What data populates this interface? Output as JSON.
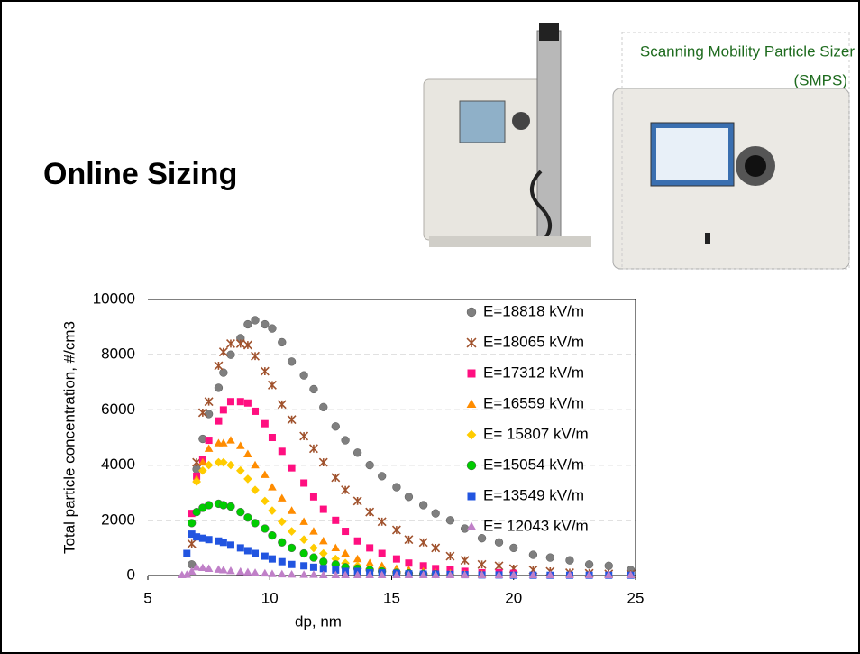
{
  "slide": {
    "title": "Online Sizing",
    "caption": [
      "Scanning Mobility Particle Sizer",
      "(SMPS)"
    ]
  },
  "chart_data": {
    "type": "scatter",
    "x_label": "dp, nm",
    "y_label": "Total particle concentration, #/cm3",
    "x": [
      6.4,
      6.6,
      6.8,
      7.0,
      7.25,
      7.5,
      7.9,
      8.1,
      8.4,
      8.8,
      9.1,
      9.4,
      9.8,
      10.1,
      10.5,
      10.9,
      11.4,
      11.8,
      12.2,
      12.7,
      13.1,
      13.6,
      14.1,
      14.6,
      15.2,
      15.7,
      16.3,
      16.8,
      17.4,
      18.0,
      18.7,
      19.4,
      20.0,
      20.8,
      21.5,
      22.3,
      23.1,
      23.9,
      24.8
    ],
    "series": [
      {
        "name": "E=18818 kV/m",
        "color": "#7f7f7f",
        "marker": "circle",
        "values": [
          null,
          null,
          400,
          3850,
          4950,
          5850,
          6800,
          7350,
          8000,
          8600,
          9100,
          9250,
          9100,
          8950,
          8450,
          7750,
          7250,
          6750,
          6100,
          5400,
          4900,
          4450,
          4000,
          3600,
          3200,
          2850,
          2550,
          2250,
          2000,
          1700,
          1350,
          1200,
          1000,
          750,
          650,
          550,
          400,
          350,
          200
        ]
      },
      {
        "name": "E=18065 kV/m",
        "color": "#a0522d",
        "marker": "star",
        "values": [
          null,
          null,
          1150,
          4100,
          5900,
          6300,
          7600,
          8100,
          8400,
          8400,
          8350,
          7950,
          7400,
          6900,
          6200,
          5650,
          5050,
          4600,
          4100,
          3550,
          3100,
          2700,
          2300,
          1950,
          1650,
          1300,
          1200,
          1000,
          700,
          550,
          400,
          350,
          250,
          200,
          150,
          100,
          80,
          60,
          50
        ]
      },
      {
        "name": "E=17312 kV/m",
        "color": "#ff0f80",
        "marker": "square",
        "values": [
          null,
          null,
          2250,
          3600,
          4200,
          4900,
          5600,
          6000,
          6300,
          6300,
          6250,
          5950,
          5500,
          5000,
          4500,
          3900,
          3350,
          2850,
          2400,
          2000,
          1600,
          1250,
          1000,
          800,
          600,
          450,
          350,
          250,
          200,
          150,
          100,
          100,
          80,
          null,
          null,
          null,
          null,
          null,
          null
        ]
      },
      {
        "name": "E=16559 kV/m",
        "color": "#ff8c00",
        "marker": "triangle",
        "values": [
          null,
          null,
          null,
          3500,
          4100,
          4600,
          4800,
          4800,
          4900,
          4700,
          4400,
          4000,
          3650,
          3200,
          2800,
          2350,
          1950,
          1600,
          1250,
          1000,
          800,
          600,
          450,
          350,
          250,
          200,
          150,
          100,
          80,
          60,
          50,
          null,
          null,
          null,
          null,
          null,
          null,
          null,
          null
        ]
      },
      {
        "name": "E= 15807 kV/m",
        "color": "#ffcc00",
        "marker": "diamond",
        "values": [
          null,
          null,
          null,
          3400,
          3800,
          4000,
          4100,
          4100,
          4000,
          3800,
          3500,
          3100,
          2700,
          2350,
          1950,
          1600,
          1300,
          1000,
          800,
          600,
          450,
          350,
          250,
          200,
          150,
          100,
          80,
          60,
          50,
          null,
          null,
          null,
          null,
          null,
          null,
          null,
          null,
          null,
          null
        ]
      },
      {
        "name": "E=15054 kV/m",
        "color": "#00cc00",
        "marker": "circle",
        "values": [
          null,
          null,
          1900,
          2300,
          2450,
          2550,
          2600,
          2550,
          2500,
          2300,
          2100,
          1900,
          1700,
          1450,
          1200,
          1000,
          800,
          650,
          500,
          400,
          300,
          250,
          200,
          150,
          100,
          80,
          60,
          50,
          null,
          null,
          null,
          null,
          null,
          null,
          null,
          null,
          null,
          null,
          null
        ]
      },
      {
        "name": "E=13549 kV/m",
        "color": "#2255e0",
        "marker": "square",
        "values": [
          null,
          800,
          1500,
          1400,
          1350,
          1300,
          1250,
          1200,
          1100,
          1000,
          900,
          800,
          700,
          600,
          500,
          400,
          350,
          300,
          250,
          200,
          150,
          150,
          100,
          100,
          80,
          60,
          50,
          50,
          40,
          30,
          20,
          20,
          10,
          10,
          10,
          10,
          10,
          10,
          10
        ]
      },
      {
        "name": "E= 12043 kV/m",
        "color": "#c080c8",
        "marker": "triangle",
        "values": [
          20,
          30,
          150,
          300,
          280,
          250,
          220,
          200,
          170,
          140,
          120,
          100,
          80,
          60,
          50,
          40,
          30,
          30,
          20,
          20,
          20,
          20,
          20,
          20,
          20,
          20,
          20,
          20,
          20,
          20,
          20,
          20,
          20,
          20,
          20,
          20,
          20,
          20,
          20
        ]
      }
    ],
    "xlim": [
      5,
      25
    ],
    "xticks": [
      5,
      10,
      15,
      20,
      25
    ],
    "ylim": [
      0,
      10000
    ],
    "yticks": [
      0,
      2000,
      4000,
      6000,
      8000,
      10000
    ],
    "grid": true,
    "legend": "right"
  }
}
